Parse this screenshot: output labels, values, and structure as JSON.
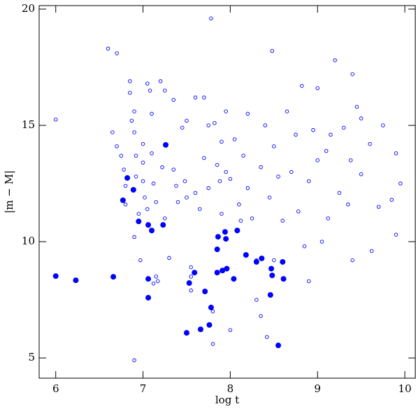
{
  "chart_data": {
    "type": "scatter",
    "x_label": "log t",
    "y_label": "|m − M|",
    "xlim": [
      5.81,
      10.12
    ],
    "ylim": [
      4.13,
      20.15
    ],
    "xticks": [
      6,
      7,
      8,
      9,
      10
    ],
    "yticks": [
      5,
      10,
      15,
      20
    ],
    "series": [
      {
        "color": "#0000ff",
        "marker": "open",
        "x": [
          6.0,
          6.6,
          6.7,
          6.65,
          6.7,
          6.75,
          6.78,
          6.8,
          6.8,
          6.85,
          6.85,
          6.87,
          6.9,
          6.9,
          6.92,
          6.92,
          6.95,
          6.9,
          6.97,
          7.0,
          7.0,
          7.0,
          7.02,
          7.05,
          7.05,
          7.08,
          7.1,
          7.1,
          7.12,
          7.15,
          7.15,
          7.12,
          7.17,
          7.2,
          7.22,
          7.25,
          7.25,
          7.3,
          7.35,
          7.35,
          7.38,
          7.4,
          7.45,
          7.48,
          7.5,
          7.5,
          7.55,
          7.55,
          7.6,
          7.6,
          7.65,
          7.7,
          7.7,
          7.75,
          7.75,
          7.78,
          7.8,
          7.8,
          7.82,
          7.85,
          7.88,
          7.9,
          7.9,
          7.95,
          7.95,
          8.0,
          8.0,
          8.05,
          8.1,
          8.12,
          8.15,
          8.2,
          8.2,
          8.25,
          8.3,
          8.3,
          8.35,
          8.35,
          8.4,
          8.45,
          8.48,
          8.5,
          8.5,
          8.55,
          8.6,
          8.65,
          8.7,
          8.75,
          8.78,
          8.82,
          8.85,
          8.9,
          8.9,
          8.95,
          9.0,
          9.0,
          9.05,
          9.1,
          9.12,
          9.15,
          9.2,
          9.25,
          9.3,
          9.35,
          9.38,
          9.4,
          9.4,
          9.45,
          9.5,
          9.5,
          9.6,
          9.62,
          9.7,
          9.75,
          9.85,
          9.9,
          9.95,
          9.9,
          6.9,
          7.55,
          8.42
        ],
        "values": [
          15.25,
          18.3,
          18.1,
          14.7,
          14.1,
          13.7,
          13.1,
          12.4,
          11.6,
          16.9,
          16.4,
          15.2,
          15.6,
          14.7,
          13.7,
          12.8,
          11.2,
          10.2,
          9.2,
          14.2,
          13.4,
          12.6,
          11.9,
          11.4,
          16.8,
          16.5,
          15.5,
          13.8,
          12.5,
          11.7,
          8.5,
          8.2,
          8.3,
          16.9,
          13.2,
          16.5,
          11.0,
          9.3,
          16.1,
          13.1,
          12.4,
          11.7,
          14.9,
          12.6,
          15.2,
          11.9,
          8.9,
          8.5,
          16.2,
          12.1,
          11.4,
          16.2,
          13.6,
          12.3,
          15.0,
          19.6,
          7.0,
          5.6,
          15.1,
          13.3,
          12.6,
          14.3,
          11.2,
          15.6,
          13.0,
          12.7,
          6.2,
          14.4,
          11.6,
          10.9,
          13.7,
          15.5,
          12.3,
          11.0,
          9.2,
          7.5,
          13.2,
          6.8,
          15.0,
          11.9,
          18.2,
          14.1,
          9.2,
          12.8,
          10.9,
          15.6,
          13.0,
          14.6,
          11.3,
          16.7,
          9.8,
          12.6,
          8.3,
          14.8,
          16.6,
          13.5,
          10.0,
          13.9,
          11.0,
          14.6,
          17.8,
          12.1,
          14.9,
          11.6,
          13.5,
          17.2,
          9.2,
          15.8,
          15.3,
          12.9,
          14.2,
          9.6,
          11.5,
          15.0,
          11.8,
          13.8,
          12.5,
          10.3,
          4.9,
          7.9,
          5.9
        ]
      },
      {
        "color": "#0000ff",
        "marker": "filled",
        "x": [
          6.0,
          6.23,
          6.66,
          6.77,
          6.82,
          6.89,
          6.95,
          7.06,
          7.1,
          7.06,
          7.06,
          7.26,
          7.23,
          7.5,
          7.53,
          7.59,
          7.66,
          7.71,
          7.76,
          7.78,
          7.85,
          7.86,
          7.85,
          7.91,
          7.94,
          7.96,
          7.95,
          8.04,
          8.08,
          8.18,
          8.3,
          8.36,
          8.47,
          8.48,
          8.46,
          8.55,
          8.6,
          8.61
        ],
        "values": [
          8.52,
          8.34,
          8.49,
          11.78,
          12.74,
          12.23,
          10.87,
          10.72,
          10.48,
          8.4,
          7.59,
          14.16,
          10.72,
          6.08,
          8.22,
          8.67,
          6.23,
          7.86,
          6.42,
          7.17,
          9.67,
          10.21,
          8.67,
          8.76,
          10.42,
          8.84,
          10.12,
          8.4,
          10.48,
          9.43,
          9.13,
          9.28,
          8.84,
          8.55,
          7.71,
          5.54,
          9.13,
          8.4
        ]
      }
    ]
  }
}
